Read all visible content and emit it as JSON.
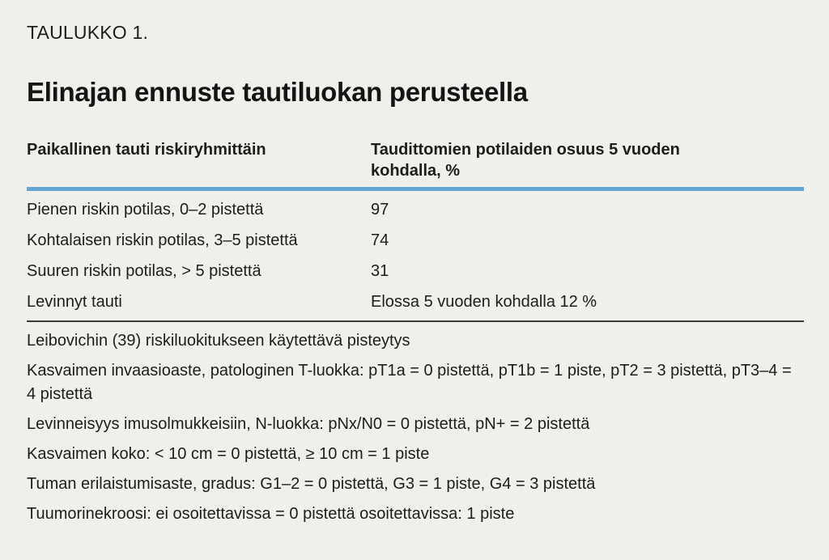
{
  "page": {
    "background_color": "#f1efeb",
    "accent_blue": "#64a5d3",
    "rule_dark": "#3a3a38",
    "kicker": "TAULUKKO 1.",
    "title": "Elinajan ennuste tautiluokan perusteella"
  },
  "table": {
    "columns": {
      "left": "Paikallinen tauti riskiryhmittäin",
      "right": "Taudittomien potilaiden osuus 5 vuoden\nkohdalla, %"
    },
    "rows": [
      {
        "label": "Pienen riskin potilas, 0–2 pistettä",
        "value": "97"
      },
      {
        "label": "Kohtalaisen riskin potilas, 3–5 pistettä",
        "value": "74"
      },
      {
        "label": "Suuren riskin potilas, > 5 pistettä",
        "value": "31"
      },
      {
        "label": "Levinnyt tauti",
        "value": "Elossa 5 vuoden kohdalla 12 %"
      }
    ],
    "footnotes": [
      "Leibovichin (39) riskiluokitukseen käytettävä pisteytys",
      "Kasvaimen invaasioaste, patologinen T-luokka: pT1a = 0 pistettä, pT1b = 1 piste, pT2 = 3 pistettä, pT3–4 = 4 pistettä",
      "Levinneisyys imusolmukkeisiin, N-luokka: pNx/N0 = 0 pistettä, pN+ = 2 pistettä",
      "Kasvaimen koko: < 10 cm = 0 pistettä, ≥ 10 cm = 1 piste",
      "Tuman erilaistumisaste, gradus: G1–2 = 0 pistettä, G3 = 1 piste, G4 = 3 pistettä",
      "Tuumorinekroosi: ei osoitettavissa = 0 pistettä osoitettavissa: 1 piste"
    ]
  }
}
